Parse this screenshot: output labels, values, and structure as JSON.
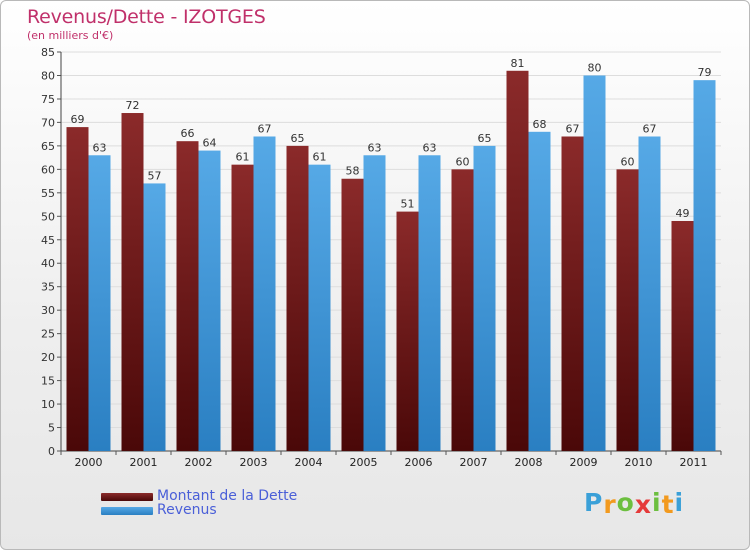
{
  "chart_data": {
    "type": "bar",
    "title": "Revenus/Dette - IZOTGES",
    "subtitle": "(en milliers d'€)",
    "categories": [
      "2000",
      "2001",
      "2002",
      "2003",
      "2004",
      "2005",
      "2006",
      "2007",
      "2008",
      "2009",
      "2010",
      "2011"
    ],
    "series": [
      {
        "name": "Montant de la Dette",
        "values": [
          69,
          72,
          66,
          61,
          65,
          58,
          51,
          60,
          81,
          67,
          60,
          49
        ],
        "color": "#8b2a2a",
        "color_dark": "#4a0808"
      },
      {
        "name": "Revenus",
        "values": [
          63,
          57,
          64,
          67,
          61,
          63,
          63,
          65,
          68,
          80,
          67,
          79
        ],
        "color": "#56a9e6",
        "color_dark": "#2a7fc2"
      }
    ],
    "ylim": [
      0,
      85
    ],
    "ytick_step": 5,
    "grid": true,
    "legend_position": "bottom-left"
  },
  "logo": {
    "letters": [
      "P",
      "r",
      "o",
      "x",
      "i",
      "t",
      "i"
    ],
    "colors": [
      "#3aa0d8",
      "#f29a1f",
      "#6cbf3f",
      "#e53a3a",
      "#6cbf3f",
      "#f29a1f",
      "#3aa0d8"
    ]
  }
}
